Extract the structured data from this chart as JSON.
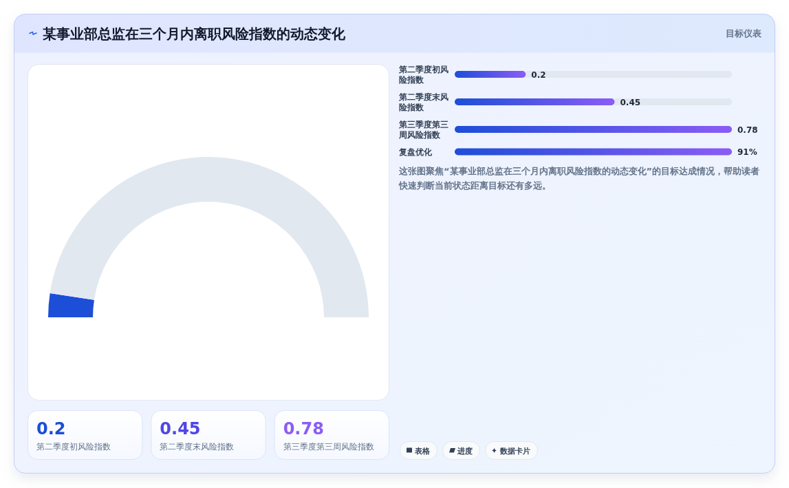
{
  "chart_data": [
    {
      "type": "donut",
      "title": "某事业部总监在三个月内离职风险指数的动态变化",
      "categories": [
        null,
        null
      ],
      "values": [
        4.8,
        95.2
      ],
      "colors": [
        "#1d4ed8",
        "#e2e8f0"
      ],
      "annotations": [
        "目标仪表"
      ]
    },
    {
      "type": "bar",
      "orientation": "horizontal",
      "categories": [
        "第二季度初风险指数",
        "第二季度末风险指数",
        "第三季度第三周风险指数"
      ],
      "values": [
        0.2,
        0.45,
        0.78
      ],
      "color": "#1d4ed8",
      "data_labels": true
    },
    {
      "type": "bar",
      "orientation": "horizontal",
      "categories": [
        "复盘优化"
      ],
      "values": [
        91
      ],
      "color": "#1d4ed8",
      "value_labels": [
        "91%"
      ],
      "annotations": [
        "这张图聚焦“某事业部总监在三个月内离职风险指数的动态变化”的目标达成情况，帮助读者快速判断当前状态距离目标还有多远。",
        "表格",
        "进度",
        "数据卡片"
      ]
    },
    {
      "type": "other",
      "categories": [
        "第二季度初风险指数",
        "第二季度末风险指数",
        "第三季度第三周风险指数"
      ],
      "values": [
        0.2,
        0.45,
        0.78
      ],
      "data_labels": true
    }
  ]
}
